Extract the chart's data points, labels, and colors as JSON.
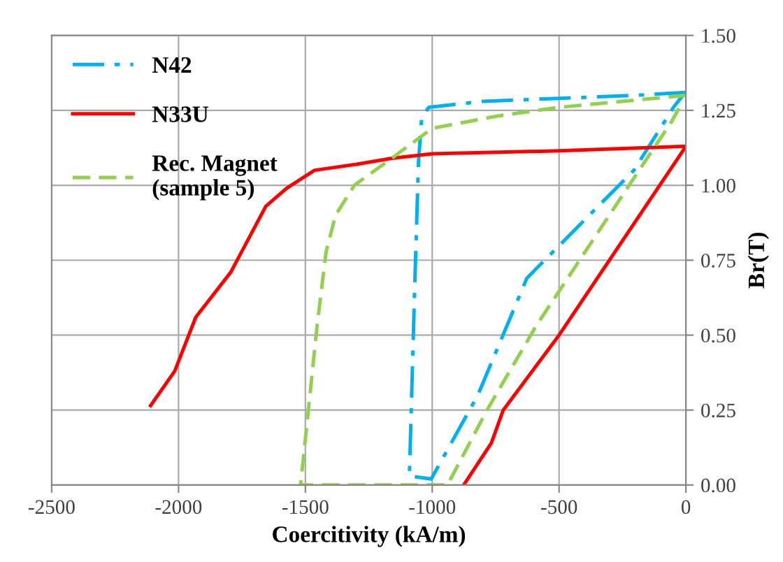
{
  "chart_data": {
    "type": "line",
    "xlabel": "Coercitivity (kA/m)",
    "ylabel": "Br(T)",
    "xlim": [
      -2500,
      0
    ],
    "xticks": [
      -2500,
      -2000,
      -1500,
      -1000,
      -500,
      0
    ],
    "ylim": [
      0,
      1.5
    ],
    "yticks": [
      {
        "value": 0,
        "label": "0.00"
      },
      {
        "value": 0.25,
        "label": "0.25"
      },
      {
        "value": 0.5,
        "label": "0.50"
      },
      {
        "value": 0.75,
        "label": "0.75"
      },
      {
        "value": 1.0,
        "label": "1.00"
      },
      {
        "value": 1.25,
        "label": "1.25"
      },
      {
        "value": 1.5,
        "label": "1.50"
      }
    ],
    "grid": true,
    "legend": "top left",
    "series": [
      {
        "name": "N42",
        "color": "#00b0f0",
        "line_style": "dashdot",
        "x": [
          0,
          -200,
          -500,
          -800,
          -1013,
          -1041,
          -1054,
          -1068,
          -1090,
          -1004,
          -820,
          -627,
          -205,
          -49,
          -12
        ],
        "values": [
          1.31,
          1.3,
          1.29,
          1.28,
          1.26,
          1.23,
          1.08,
          0.69,
          0.03,
          0.02,
          0.3,
          0.69,
          1.05,
          1.26,
          1.3
        ]
      },
      {
        "name": "N33U",
        "color": "#ff0000",
        "line_style": "solid",
        "x": [
          -2110,
          -2015,
          -1932,
          -1794,
          -1656,
          -1574,
          -1464,
          -1298,
          -1160,
          -1000,
          -500,
          0,
          -500,
          -720,
          -767,
          -876
        ],
        "values": [
          0.265,
          0.38,
          0.56,
          0.71,
          0.93,
          0.99,
          1.05,
          1.07,
          1.09,
          1.105,
          1.115,
          1.13,
          0.5,
          0.25,
          0.14,
          0.0
        ]
      },
      {
        "name": "Rec. Magnet\n(sample 5)",
        "color": "#92d050",
        "line_style": "dashed",
        "x": [
          0,
          -250,
          -500,
          -750,
          -1000,
          -1160,
          -1307,
          -1381,
          -1418,
          -1454,
          -1482,
          -1519,
          -940,
          -784,
          -591,
          -224,
          -58,
          -12
        ],
        "values": [
          1.3,
          1.28,
          1.26,
          1.23,
          1.19,
          1.09,
          1.0,
          0.9,
          0.78,
          0.53,
          0.3,
          0.0,
          0.0,
          0.25,
          0.53,
          1.0,
          1.21,
          1.28
        ]
      }
    ]
  }
}
